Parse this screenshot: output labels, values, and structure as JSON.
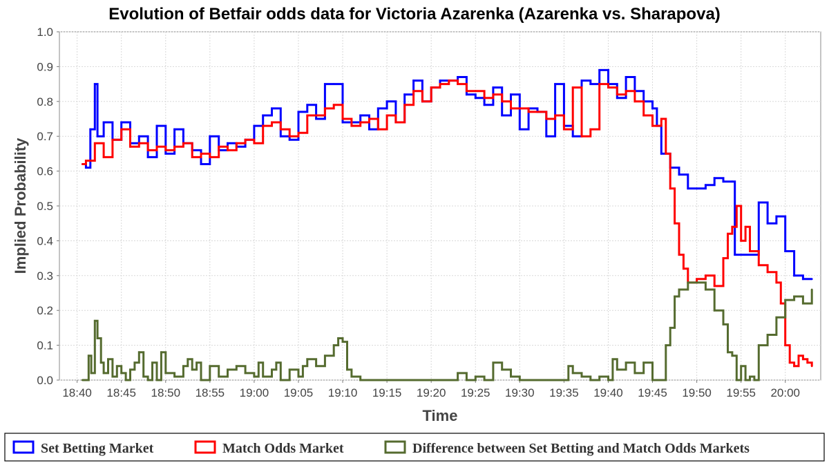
{
  "chart_data": {
    "type": "line",
    "title": "Evolution of Betfair odds data for Victoria Azarenka (Azarenka vs. Sharapova)",
    "xlabel": "Time",
    "ylabel": "Implied Probability",
    "xlim": [
      "18:38",
      "20:04"
    ],
    "ylim": [
      0,
      1
    ],
    "grid": true,
    "legend_position": "bottom",
    "x_ticks": [
      "18:40",
      "18:45",
      "18:50",
      "18:55",
      "19:00",
      "19:05",
      "19:10",
      "19:15",
      "19:20",
      "19:25",
      "19:30",
      "19:35",
      "19:40",
      "19:45",
      "19:50",
      "19:55",
      "20:00"
    ],
    "y_ticks": [
      "0.0",
      "0.1",
      "0.2",
      "0.3",
      "0.4",
      "0.5",
      "0.6",
      "0.7",
      "0.8",
      "0.9",
      "1.0"
    ],
    "series": [
      {
        "name": "Set Betting Market",
        "color": "#0000ff",
        "x": [
          "18:40.6",
          "18:41.0",
          "18:41.5",
          "18:42.0",
          "18:42.3",
          "18:43.0",
          "18:44.0",
          "18:45.0",
          "18:46.0",
          "18:47.0",
          "18:48.0",
          "18:49.0",
          "18:50.0",
          "18:51.0",
          "18:52.0",
          "18:53.0",
          "18:54.0",
          "18:55.0",
          "18:56.0",
          "18:57.0",
          "18:58.0",
          "18:59.0",
          "19:00.0",
          "19:01.0",
          "19:02.0",
          "19:03.0",
          "19:04.0",
          "19:05.0",
          "19:06.0",
          "19:07.0",
          "19:08.0",
          "19:09.0",
          "19:10.0",
          "19:11.0",
          "19:12.0",
          "19:13.0",
          "19:14.0",
          "19:15.0",
          "19:16.0",
          "19:17.0",
          "19:18.0",
          "19:19.0",
          "19:20.0",
          "19:21.0",
          "19:22.0",
          "19:23.0",
          "19:24.0",
          "19:25.0",
          "19:26.0",
          "19:27.0",
          "19:28.0",
          "19:29.0",
          "19:30.0",
          "19:31.0",
          "19:32.0",
          "19:33.0",
          "19:34.0",
          "19:35.0",
          "19:36.0",
          "19:37.0",
          "19:38.0",
          "19:39.0",
          "19:40.0",
          "19:41.0",
          "19:42.0",
          "19:43.0",
          "19:44.0",
          "19:45.0",
          "19:45.5",
          "19:46.0",
          "19:47.0",
          "19:48.0",
          "19:49.0",
          "19:50.0",
          "19:51.0",
          "19:52.0",
          "19:53.0",
          "19:54.0",
          "19:54.3",
          "19:55.0",
          "19:56.0",
          "19:57.0",
          "19:58.0",
          "19:59.0",
          "20:00.0",
          "20:01.0",
          "20:02.0",
          "20:03.0"
        ],
        "values": [
          0.62,
          0.61,
          0.72,
          0.85,
          0.7,
          0.74,
          0.69,
          0.74,
          0.68,
          0.7,
          0.64,
          0.73,
          0.65,
          0.72,
          0.68,
          0.66,
          0.62,
          0.7,
          0.66,
          0.68,
          0.67,
          0.69,
          0.73,
          0.76,
          0.78,
          0.7,
          0.69,
          0.77,
          0.79,
          0.75,
          0.85,
          0.85,
          0.74,
          0.74,
          0.76,
          0.72,
          0.78,
          0.8,
          0.74,
          0.82,
          0.86,
          0.8,
          0.84,
          0.86,
          0.86,
          0.87,
          0.82,
          0.81,
          0.79,
          0.84,
          0.76,
          0.82,
          0.72,
          0.78,
          0.77,
          0.7,
          0.85,
          0.73,
          0.7,
          0.86,
          0.85,
          0.89,
          0.85,
          0.81,
          0.87,
          0.83,
          0.8,
          0.78,
          0.73,
          0.65,
          0.61,
          0.59,
          0.55,
          0.55,
          0.56,
          0.58,
          0.57,
          0.57,
          0.36,
          0.36,
          0.36,
          0.51,
          0.45,
          0.47,
          0.37,
          0.3,
          0.29,
          0.29
        ]
      },
      {
        "name": "Match Odds Market",
        "color": "#ff0000",
        "x": [
          "18:40.6",
          "18:41.0",
          "18:42.0",
          "18:43.0",
          "18:44.0",
          "18:45.0",
          "18:46.0",
          "18:47.0",
          "18:48.0",
          "18:49.0",
          "18:50.0",
          "18:51.0",
          "18:52.0",
          "18:53.0",
          "18:54.0",
          "18:55.0",
          "18:56.0",
          "18:57.0",
          "18:58.0",
          "18:59.0",
          "19:00.0",
          "19:01.0",
          "19:02.0",
          "19:03.0",
          "19:04.0",
          "19:05.0",
          "19:06.0",
          "19:07.0",
          "19:08.0",
          "19:09.0",
          "19:10.0",
          "19:11.0",
          "19:12.0",
          "19:13.0",
          "19:14.0",
          "19:15.0",
          "19:16.0",
          "19:17.0",
          "19:18.0",
          "19:19.0",
          "19:20.0",
          "19:21.0",
          "19:22.0",
          "19:23.0",
          "19:24.0",
          "19:25.0",
          "19:26.0",
          "19:27.0",
          "19:28.0",
          "19:29.0",
          "19:30.0",
          "19:31.0",
          "19:32.0",
          "19:33.0",
          "19:34.0",
          "19:35.0",
          "19:36.0",
          "19:37.0",
          "19:38.0",
          "19:39.0",
          "19:40.0",
          "19:41.0",
          "19:42.0",
          "19:43.0",
          "19:44.0",
          "19:45.0",
          "19:46.0",
          "19:46.5",
          "19:47.0",
          "19:47.5",
          "19:48.0",
          "19:48.5",
          "19:49.0",
          "19:50.0",
          "19:51.0",
          "19:52.0",
          "19:53.0",
          "19:53.5",
          "19:54.0",
          "19:54.5",
          "19:55.0",
          "19:55.5",
          "19:56.0",
          "19:57.0",
          "19:58.0",
          "19:59.0",
          "19:59.5",
          "20:00.0",
          "20:00.5",
          "20:01.0",
          "20:01.5",
          "20:02.0",
          "20:02.5",
          "20:03.0"
        ],
        "values": [
          0.62,
          0.63,
          0.68,
          0.64,
          0.69,
          0.72,
          0.67,
          0.68,
          0.66,
          0.67,
          0.66,
          0.67,
          0.68,
          0.64,
          0.65,
          0.64,
          0.67,
          0.66,
          0.68,
          0.69,
          0.68,
          0.73,
          0.74,
          0.72,
          0.7,
          0.71,
          0.76,
          0.76,
          0.78,
          0.79,
          0.75,
          0.73,
          0.74,
          0.75,
          0.72,
          0.76,
          0.74,
          0.79,
          0.83,
          0.8,
          0.84,
          0.85,
          0.86,
          0.85,
          0.83,
          0.83,
          0.81,
          0.82,
          0.8,
          0.78,
          0.78,
          0.77,
          0.77,
          0.75,
          0.76,
          0.72,
          0.84,
          0.7,
          0.72,
          0.85,
          0.84,
          0.82,
          0.83,
          0.8,
          0.76,
          0.73,
          0.75,
          0.65,
          0.55,
          0.45,
          0.36,
          0.32,
          0.28,
          0.29,
          0.3,
          0.27,
          0.35,
          0.42,
          0.44,
          0.5,
          0.4,
          0.44,
          0.37,
          0.33,
          0.31,
          0.28,
          0.22,
          0.1,
          0.05,
          0.04,
          0.07,
          0.06,
          0.05,
          0.04
        ]
      },
      {
        "name": "Difference between Set Betting and Match Odds Markets",
        "color": "#556b2f",
        "x": [
          "18:40.6",
          "18:41.0",
          "18:41.3",
          "18:41.6",
          "18:42.0",
          "18:42.3",
          "18:42.7",
          "18:43.0",
          "18:43.5",
          "18:44.0",
          "18:44.5",
          "18:45.0",
          "18:45.5",
          "18:46.0",
          "18:46.5",
          "18:47.0",
          "18:47.5",
          "18:48.0",
          "18:48.5",
          "18:49.0",
          "18:49.5",
          "18:50.0",
          "18:51.0",
          "18:52.0",
          "18:52.5",
          "18:53.0",
          "18:53.5",
          "18:54.0",
          "18:55.0",
          "18:56.0",
          "18:57.0",
          "18:58.0",
          "18:59.0",
          "19:00.0",
          "19:00.5",
          "19:01.0",
          "19:02.0",
          "19:02.5",
          "19:03.0",
          "19:04.0",
          "19:05.0",
          "19:05.5",
          "19:06.0",
          "19:07.0",
          "19:08.0",
          "19:09.0",
          "19:09.5",
          "19:10.0",
          "19:10.5",
          "19:11.0",
          "19:12.0",
          "19:13.0",
          "19:14.0",
          "19:15.0",
          "19:16.0",
          "19:17.0",
          "19:18.0",
          "19:20.0",
          "19:22.0",
          "19:23.0",
          "19:24.0",
          "19:25.0",
          "19:26.0",
          "19:27.0",
          "19:28.0",
          "19:29.0",
          "19:30.0",
          "19:31.0",
          "19:32.0",
          "19:33.0",
          "19:34.0",
          "19:35.0",
          "19:35.5",
          "19:36.0",
          "19:37.0",
          "19:38.0",
          "19:39.0",
          "19:40.0",
          "19:40.5",
          "19:41.0",
          "19:42.0",
          "19:43.0",
          "19:44.0",
          "19:45.0",
          "19:46.0",
          "19:46.5",
          "19:47.0",
          "19:47.5",
          "19:48.0",
          "19:49.0",
          "19:50.0",
          "19:51.0",
          "19:52.0",
          "19:53.0",
          "19:53.5",
          "19:54.0",
          "19:54.5",
          "19:55.0",
          "19:55.5",
          "19:56.0",
          "19:56.5",
          "19:57.0",
          "19:58.0",
          "19:59.0",
          "20:00.0",
          "20:01.0",
          "20:02.0",
          "20:03.0"
        ],
        "values": [
          0.0,
          0.0,
          0.07,
          0.02,
          0.17,
          0.12,
          0.05,
          0.02,
          0.06,
          0.01,
          0.04,
          0.02,
          0.0,
          0.03,
          0.05,
          0.08,
          0.01,
          0.0,
          0.05,
          0.0,
          0.08,
          0.02,
          0.01,
          0.04,
          0.06,
          0.03,
          0.05,
          0.0,
          0.04,
          0.01,
          0.03,
          0.04,
          0.02,
          0.01,
          0.05,
          0.01,
          0.03,
          0.05,
          0.0,
          0.03,
          0.01,
          0.04,
          0.06,
          0.04,
          0.07,
          0.1,
          0.12,
          0.11,
          0.03,
          0.01,
          0.0,
          0.0,
          0.0,
          0.0,
          0.0,
          0.0,
          0.0,
          0.0,
          0.0,
          0.02,
          0.0,
          0.01,
          0.0,
          0.05,
          0.03,
          0.01,
          0.0,
          0.0,
          0.0,
          0.0,
          0.0,
          0.0,
          0.04,
          0.02,
          0.01,
          0.0,
          0.01,
          0.0,
          0.06,
          0.03,
          0.05,
          0.02,
          0.05,
          0.0,
          0.0,
          0.1,
          0.15,
          0.24,
          0.26,
          0.28,
          0.28,
          0.26,
          0.2,
          0.16,
          0.08,
          0.07,
          0.0,
          0.04,
          0.0,
          0.01,
          0.0,
          0.1,
          0.13,
          0.18,
          0.23,
          0.24,
          0.22,
          0.26
        ]
      }
    ]
  }
}
